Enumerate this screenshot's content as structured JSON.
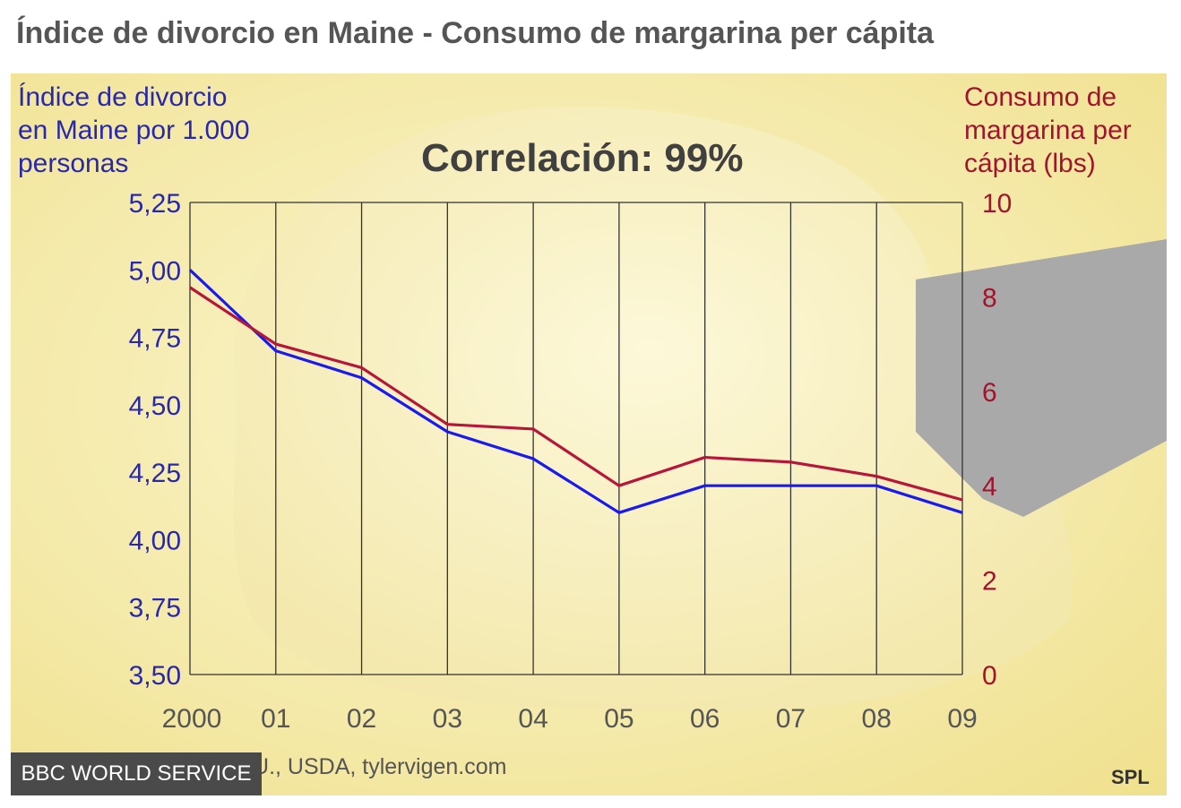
{
  "title": "Índice de divorcio en Maine - Consumo de margarina per cápita",
  "left_axis_title": [
    "Índice de divorcio",
    "en Maine por 1.000",
    "personas"
  ],
  "right_axis_title": [
    "Consumo de",
    "margarina per",
    "cápita (lbs)"
  ],
  "correlation_label": "Correlación: 99%",
  "source": "Fuente: Censo de EE.UU., USDA, tylervigen.com",
  "brand": "BBC WORLD SERVICE",
  "credit": "SPL",
  "colors": {
    "divorce": "#1a1aee",
    "margarine": "#b5163a",
    "left_axis": "#2828a8",
    "right_axis": "#a0152d",
    "background": "#f3e7a4"
  },
  "chart_data": {
    "type": "line",
    "x": [
      "2000",
      "01",
      "02",
      "03",
      "04",
      "05",
      "06",
      "07",
      "08",
      "09"
    ],
    "series": [
      {
        "name": "Índice de divorcio en Maine por 1.000 personas",
        "axis": "left",
        "values": [
          5.0,
          4.7,
          4.6,
          4.4,
          4.3,
          4.1,
          4.2,
          4.2,
          4.2,
          4.1
        ]
      },
      {
        "name": "Consumo de margarina per cápita (lbs)",
        "axis": "right",
        "values": [
          8.2,
          7.0,
          6.5,
          5.3,
          5.2,
          4.0,
          4.6,
          4.5,
          4.2,
          3.7
        ]
      }
    ],
    "left_axis": {
      "ylim": [
        3.5,
        5.25
      ],
      "ticks": [
        "5,25",
        "5,00",
        "4,75",
        "4,50",
        "4,25",
        "4,00",
        "3,75",
        "3,50"
      ]
    },
    "right_axis": {
      "ylim": [
        0,
        10
      ],
      "ticks": [
        "10",
        "8",
        "6",
        "4",
        "2",
        "0"
      ]
    },
    "grid": {
      "vertical": true,
      "horizontal": false
    }
  }
}
